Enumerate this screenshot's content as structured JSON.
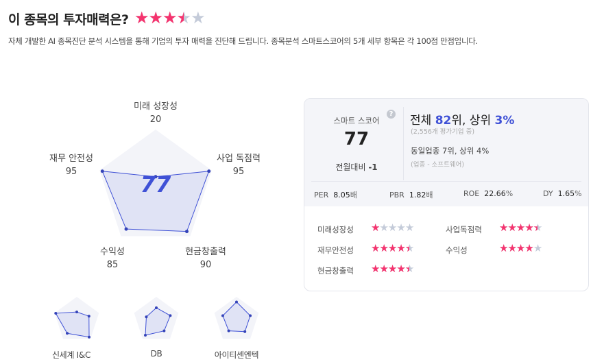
{
  "header": {
    "title": "이 종목의 투자매력은?",
    "rating": 3.5,
    "description": "자체 개발한 AI 종목진단 분석 시스템을 통해 기업의 투자 매력을 진단해 드립니다. 종목분석 스마트스코어의 5개 세부 항목은 각 100점 만점입니다."
  },
  "radar": {
    "score": "77",
    "axes": [
      {
        "label": "미래 성장성",
        "value": "20"
      },
      {
        "label": "사업 독점력",
        "value": "95"
      },
      {
        "label": "현금창출력",
        "value": "90"
      },
      {
        "label": "수익성",
        "value": "85"
      },
      {
        "label": "재무 안전성",
        "value": "95"
      }
    ],
    "color": "#3f51d6"
  },
  "peers": [
    {
      "name": "신세계 I&C",
      "values": [
        35,
        55,
        90,
        70,
        95
      ]
    },
    {
      "name": "DB",
      "values": [
        53,
        63,
        57,
        80,
        45
      ]
    },
    {
      "name": "아이티센엔텍",
      "values": [
        78,
        62,
        61,
        57,
        62
      ]
    }
  ],
  "card": {
    "score_label": "스마트 스코어",
    "score": "77",
    "change_label": "전월대비",
    "change": "-1",
    "rank_prefix": "전체 ",
    "rank": "82",
    "rank_mid": "위, 상위 ",
    "rank_pct": "3%",
    "rank_sub": "(2,556개 평가기업 중)",
    "industry_rank": "동일업종 7위, 상위 4%",
    "industry_sub": "(업종 - 소프트웨어)",
    "metrics": [
      {
        "label": "PER",
        "value": "8.05",
        "unit": "배"
      },
      {
        "label": "PBR",
        "value": "1.82",
        "unit": "배"
      },
      {
        "label": "ROE",
        "value": "22.66",
        "unit": "%"
      },
      {
        "label": "DY",
        "value": "1.65",
        "unit": "%"
      }
    ],
    "ratings": [
      {
        "label": "미래성장성",
        "stars": 1
      },
      {
        "label": "사업독점력",
        "stars": 4.5
      },
      {
        "label": "재무안전성",
        "stars": 4.5
      },
      {
        "label": "수익성",
        "stars": 4
      },
      {
        "label": "현금창출력",
        "stars": 4.5
      }
    ]
  },
  "colors": {
    "star": "#f5336e",
    "star_empty": "#c4cbd9",
    "accent": "#3f51d6"
  }
}
